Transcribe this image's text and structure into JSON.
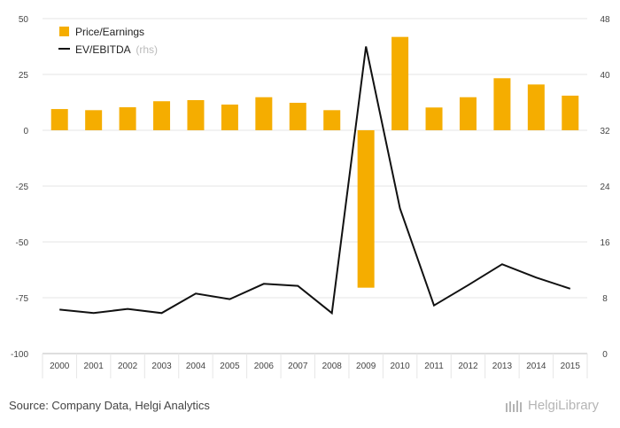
{
  "chart_data": {
    "type": "bar",
    "categories": [
      "2000",
      "2001",
      "2002",
      "2003",
      "2004",
      "2005",
      "2006",
      "2007",
      "2008",
      "2009",
      "2010",
      "2011",
      "2012",
      "2013",
      "2014",
      "2015"
    ],
    "series": [
      {
        "name": "Price/Earnings",
        "type": "bar",
        "axis": "left",
        "color": "#f5ad00",
        "values": [
          9.5,
          9,
          10.3,
          13,
          13.5,
          11.5,
          14.8,
          12.3,
          9,
          -70.5,
          41.8,
          10.2,
          14.8,
          23.3,
          20.5,
          15.5
        ]
      },
      {
        "name": "EV/EBITDA",
        "type": "line",
        "axis": "right",
        "color": "#111111",
        "values": [
          6.3,
          5.8,
          6.4,
          5.8,
          8.6,
          7.8,
          10.0,
          9.7,
          5.8,
          44.0,
          20.8,
          6.9,
          9.8,
          12.8,
          10.9,
          9.3
        ]
      }
    ],
    "y_left": {
      "ylim": [
        -100,
        50
      ],
      "ticks": [
        "50",
        "25",
        "0",
        "-25",
        "-50",
        "-75",
        "-100"
      ]
    },
    "y_right": {
      "ylim": [
        0,
        48
      ],
      "ticks": [
        "48",
        "40",
        "32",
        "24",
        "16",
        "8",
        "0"
      ]
    },
    "legend": {
      "position": "top-left",
      "items": [
        "Price/Earnings",
        "EV/EBITDA"
      ],
      "rhs_note": "(rhs)"
    },
    "grid": true
  },
  "footer": {
    "source": "Source: Company Data, Helgi Analytics",
    "brand": "HelgiLibrary"
  }
}
